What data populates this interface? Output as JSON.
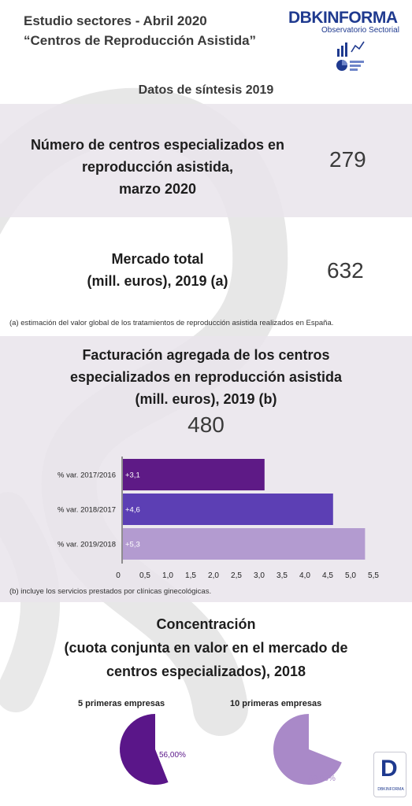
{
  "header": {
    "title_line1": "Estudio sectores - Abril 2020",
    "title_line2": "“Centros de Reproducción Asistida”",
    "brand_name": "DBKINFORMA",
    "brand_sub": "Observatorio Sectorial",
    "brand_icon": "chart-analytics-icon"
  },
  "synthesis_title": "Datos de síntesis 2019",
  "kpis": {
    "centers": {
      "label_lines": [
        "Número de centros especializados en",
        "reproducción asistida,",
        "marzo 2020"
      ],
      "value": "279"
    },
    "market": {
      "label_lines": [
        "Mercado total",
        "(mill. euros), 2019 (a)"
      ],
      "value": "632"
    }
  },
  "note_a": "(a) estimación del valor global de los tratamientos de reproducción asistida realizados en España.",
  "billing": {
    "title_lines": [
      "Facturación agregada de los centros",
      "especializados en reproducción asistida",
      "(mill. euros), 2019 (b)"
    ],
    "value": "480"
  },
  "note_b": "(b) incluye los servicios prestados por clínicas ginecológicas.",
  "concentration": {
    "title_lines": [
      "Concentración",
      "(cuota conjunta en valor en el mercado de",
      "centros especializados), 2018"
    ]
  },
  "footer_logo": {
    "letter": "D",
    "text": "DBKINFORMA",
    "icon": "dbk-logo-icon"
  },
  "colors": {
    "bar1": "#5e1a86",
    "bar2": "#5c3fb4",
    "bar3": "#b39bd0",
    "pie1": "#5a1689",
    "pie2": "#a989c8",
    "band": "#e9e4eb"
  },
  "chart_data": [
    {
      "type": "bar",
      "orientation": "horizontal",
      "categories": [
        "% var. 2017/2016",
        "% var. 2018/2017",
        "% var. 2019/2018"
      ],
      "values": [
        3.1,
        4.6,
        5.3
      ],
      "value_labels": [
        "+3,1",
        "+4,6",
        "+5,3"
      ],
      "xlim": [
        0,
        5.5
      ],
      "xticks": [
        0,
        0.5,
        1.0,
        1.5,
        2.0,
        2.5,
        3.0,
        3.5,
        4.0,
        4.5,
        5.0,
        5.5
      ],
      "xtick_labels": [
        "0",
        "0,5",
        "1,0",
        "1,5",
        "2,0",
        "2,5",
        "3,0",
        "3,5",
        "4,0",
        "4,5",
        "5,0",
        "5,5"
      ],
      "grid": false
    },
    {
      "type": "pie",
      "title": "5 primeras empresas",
      "values": [
        56.0
      ],
      "value_labels": [
        "56,00%"
      ]
    },
    {
      "type": "pie",
      "title": "10 primeras empresas",
      "values": [
        69.0
      ],
      "value_labels": [
        "69,00%"
      ]
    }
  ]
}
